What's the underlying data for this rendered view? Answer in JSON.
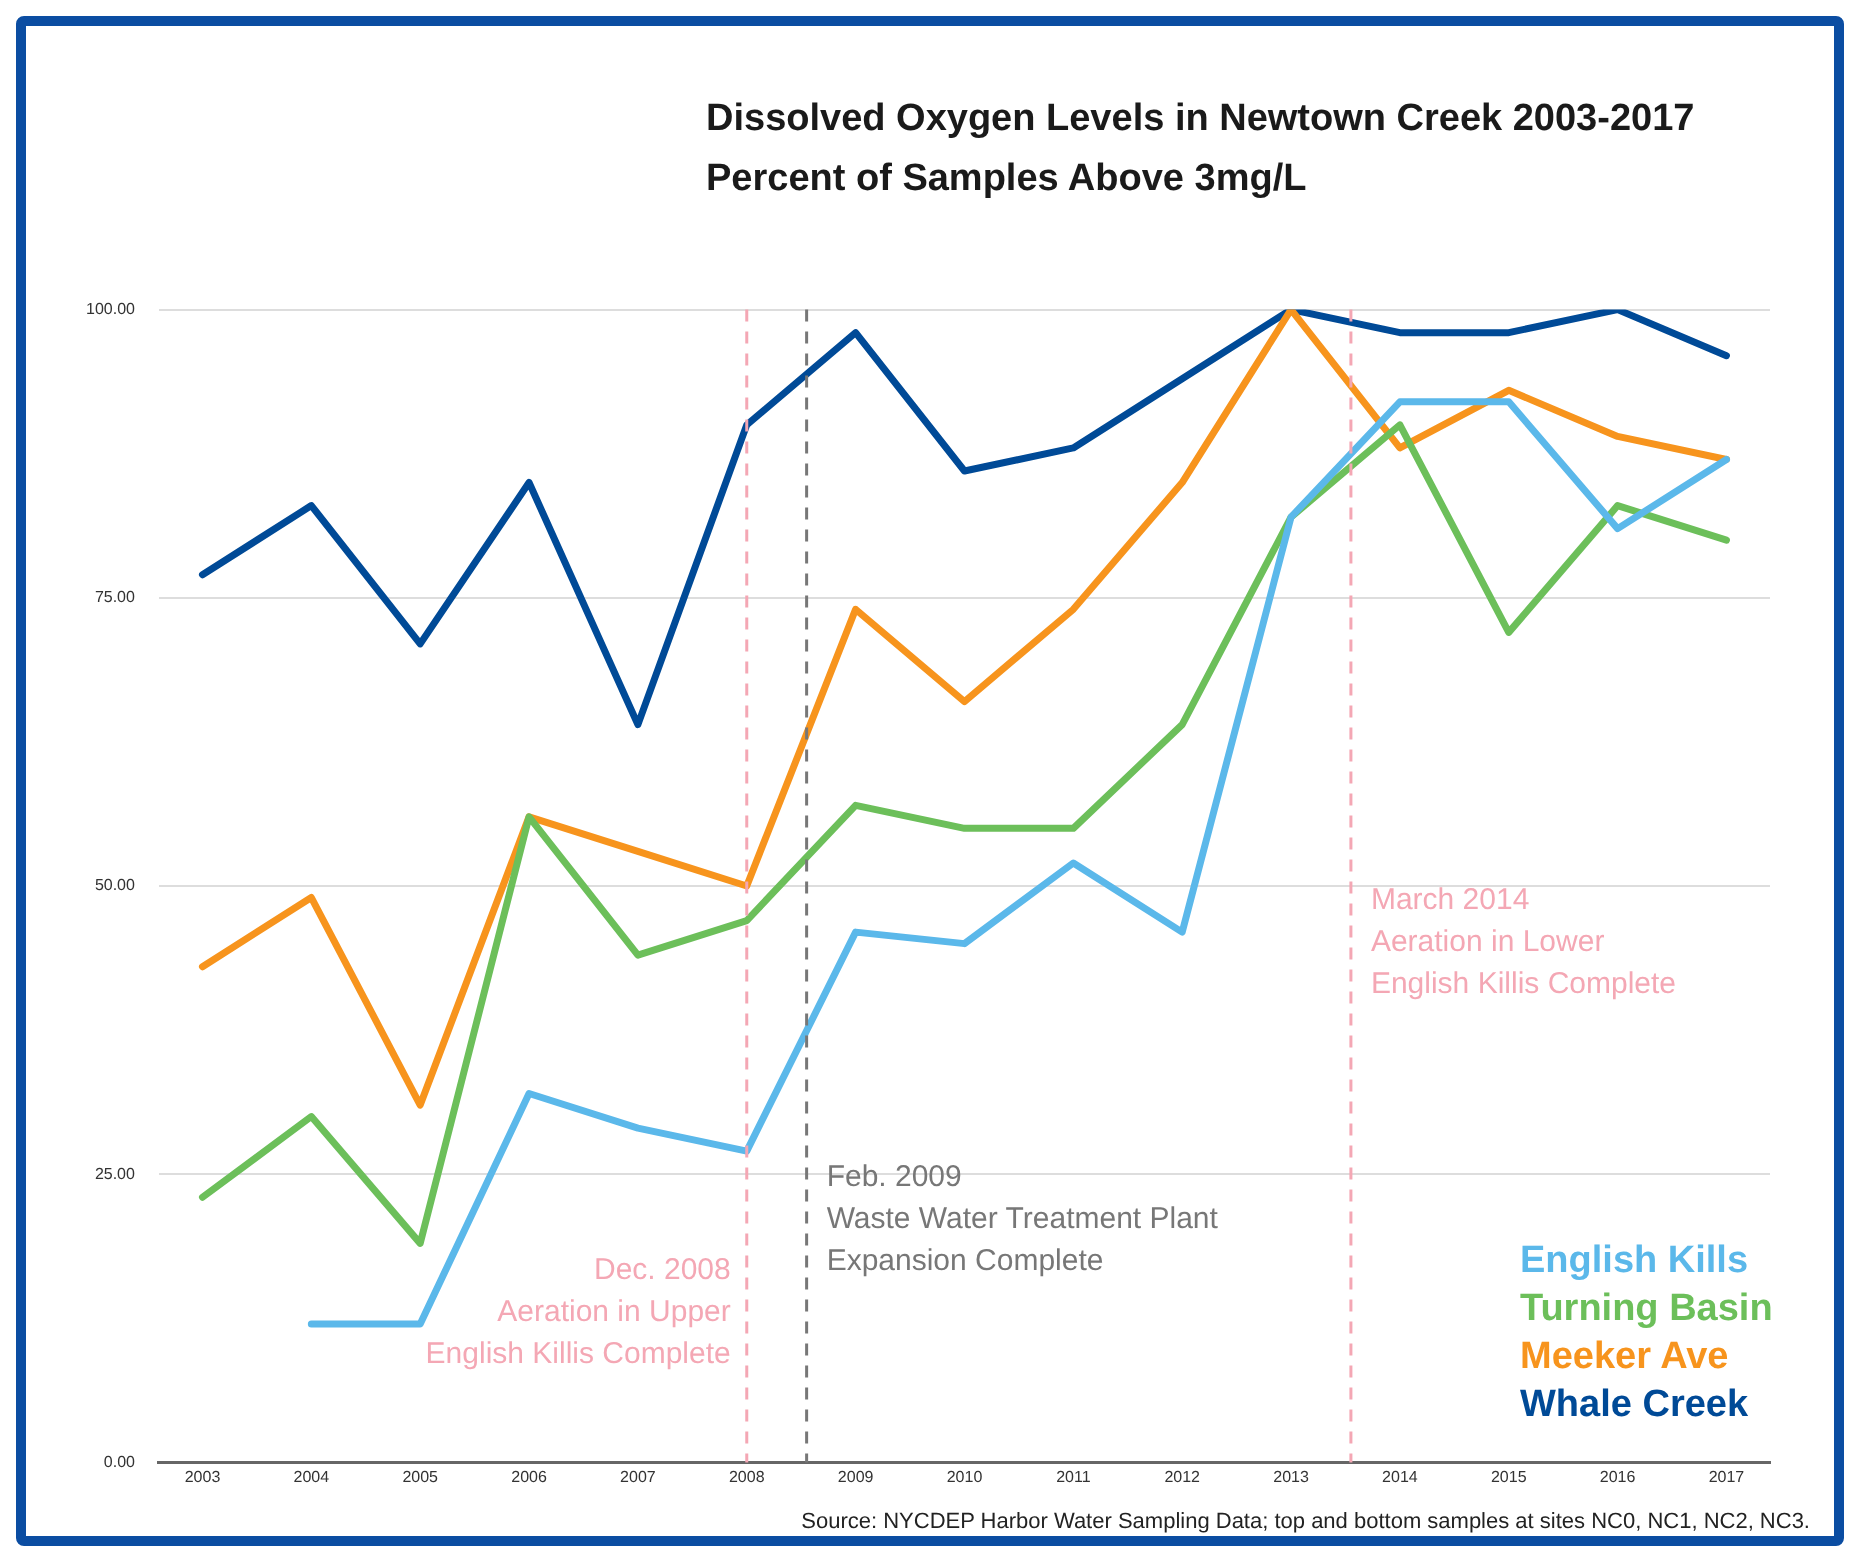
{
  "chart_data": {
    "type": "line",
    "title": "Dissolved Oxygen Levels in Newtown Creek 2003-2017",
    "subtitle": "Percent of Samples Above 3mg/L",
    "x": [
      2003,
      2004,
      2005,
      2006,
      2007,
      2008,
      2009,
      2010,
      2011,
      2012,
      2013,
      2014,
      2015,
      2016,
      2017
    ],
    "xlim": [
      2002.6,
      2017.4
    ],
    "xticks": [
      2003,
      2004,
      2005,
      2006,
      2007,
      2008,
      2009,
      2010,
      2011,
      2012,
      2013,
      2014,
      2015,
      2016,
      2017
    ],
    "ylim": [
      0,
      100
    ],
    "yticks": [
      {
        "value": 0,
        "label": "0.00"
      },
      {
        "value": 25,
        "label": "25.00"
      },
      {
        "value": 50,
        "label": "50.00"
      },
      {
        "value": 75,
        "label": "75.00"
      },
      {
        "value": 100,
        "label": "100.00"
      }
    ],
    "series": [
      {
        "name": "English Kills",
        "color": "#5bb8ea",
        "values": [
          null,
          12,
          12,
          32,
          29,
          27,
          46,
          45,
          52,
          46,
          82,
          92,
          92,
          81,
          87
        ]
      },
      {
        "name": "Turning Basin",
        "color": "#6cbf5a",
        "values": [
          23,
          30,
          19,
          56,
          44,
          47,
          57,
          55,
          55,
          64,
          82,
          90,
          72,
          83,
          80
        ]
      },
      {
        "name": "Meeker Ave",
        "color": "#f7941d",
        "values": [
          43,
          49,
          31,
          56,
          53,
          50,
          74,
          66,
          74,
          85,
          100,
          88,
          93,
          89,
          87
        ]
      },
      {
        "name": "Whale Creek",
        "color": "#004a97",
        "values": [
          77,
          83,
          71,
          85,
          64,
          90,
          98,
          86,
          88,
          94,
          100,
          98,
          98,
          100,
          96
        ]
      }
    ],
    "ref_lines": [
      {
        "axis": "x",
        "value": 2008,
        "label": "Dec. 2008\nAeration in Upper\nEnglish Killis Complete",
        "color": "#f4a7b4",
        "line_style": "dashed"
      },
      {
        "axis": "x",
        "value": 2008.55,
        "label": "Feb. 2009\nWaste Water Treatment Plant\nExpansion Complete",
        "color": "#777777",
        "line_style": "dashed"
      },
      {
        "axis": "x",
        "value": 2013.55,
        "label": "March 2014\nAeration in Lower\nEnglish Killis Complete",
        "color": "#f4a7b4",
        "line_style": "dashed"
      }
    ],
    "annotations": [
      "Source: NYCDEP Harbor Water Sampling Data; top and bottom samples at sites NC0, NC1, NC2, NC3."
    ],
    "grid": "y",
    "legend": "bottom right",
    "marker": "none",
    "line_style": "solid"
  }
}
